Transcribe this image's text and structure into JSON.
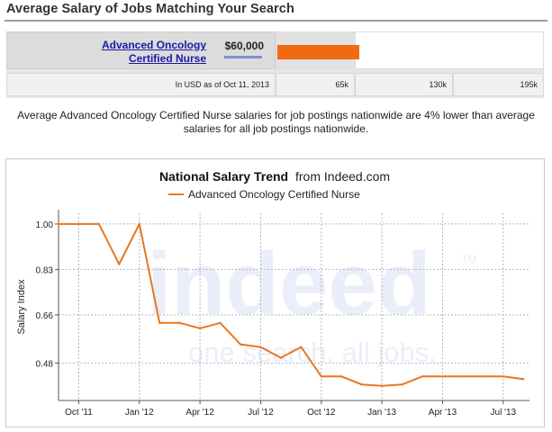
{
  "header": {
    "title": "Average Salary of Jobs Matching Your Search"
  },
  "salary_table": {
    "job_title": "Advanced Oncology Certified Nurse",
    "salary": "$60,000",
    "salary_value": 60000,
    "scale_max": 195000,
    "currency_note": "In USD as of Oct 11, 2013",
    "scale_labels": [
      "65k",
      "130k",
      "195k"
    ]
  },
  "summary": "Average Advanced Oncology Certified Nurse salaries for job postings nationwide are 4% lower than average salaries for all job postings nationwide.",
  "watermark": {
    "brand": "indeed",
    "tagline": "one search. all jobs.",
    "tm": "TM"
  },
  "chart_data": {
    "type": "line",
    "title": "National Salary Trend",
    "title_suffix": "from Indeed.com",
    "ylabel": "Salary Index",
    "xlabel": "",
    "ylim": [
      0.34,
      1.04
    ],
    "yticks": [
      1.0,
      0.83,
      0.66,
      0.48
    ],
    "ytick_labels": [
      "1.00",
      "0.83",
      "0.66",
      "0.48"
    ],
    "xticks": [
      1,
      4,
      7,
      10,
      13,
      16,
      19,
      22
    ],
    "xtick_labels": [
      "Oct '11",
      "Jan '12",
      "Apr '12",
      "Jul '12",
      "Oct '12",
      "Jan '13",
      "Apr '13",
      "Jul '13"
    ],
    "xlim": [
      0,
      23.3
    ],
    "legend_position": "top",
    "grid": true,
    "series": [
      {
        "name": "Advanced Oncology Certified Nurse",
        "color": "#e87722",
        "x": [
          0,
          1,
          2,
          3,
          4,
          5,
          6,
          7,
          8,
          9,
          10,
          11,
          12,
          13,
          14,
          15,
          16,
          17,
          18,
          19,
          20,
          21,
          22,
          23
        ],
        "values": [
          1.0,
          1.0,
          1.0,
          0.85,
          1.0,
          0.63,
          0.63,
          0.61,
          0.63,
          0.55,
          0.54,
          0.5,
          0.54,
          0.43,
          0.43,
          0.4,
          0.395,
          0.4,
          0.43,
          0.43,
          0.43,
          0.43,
          0.43,
          0.42
        ]
      }
    ]
  }
}
